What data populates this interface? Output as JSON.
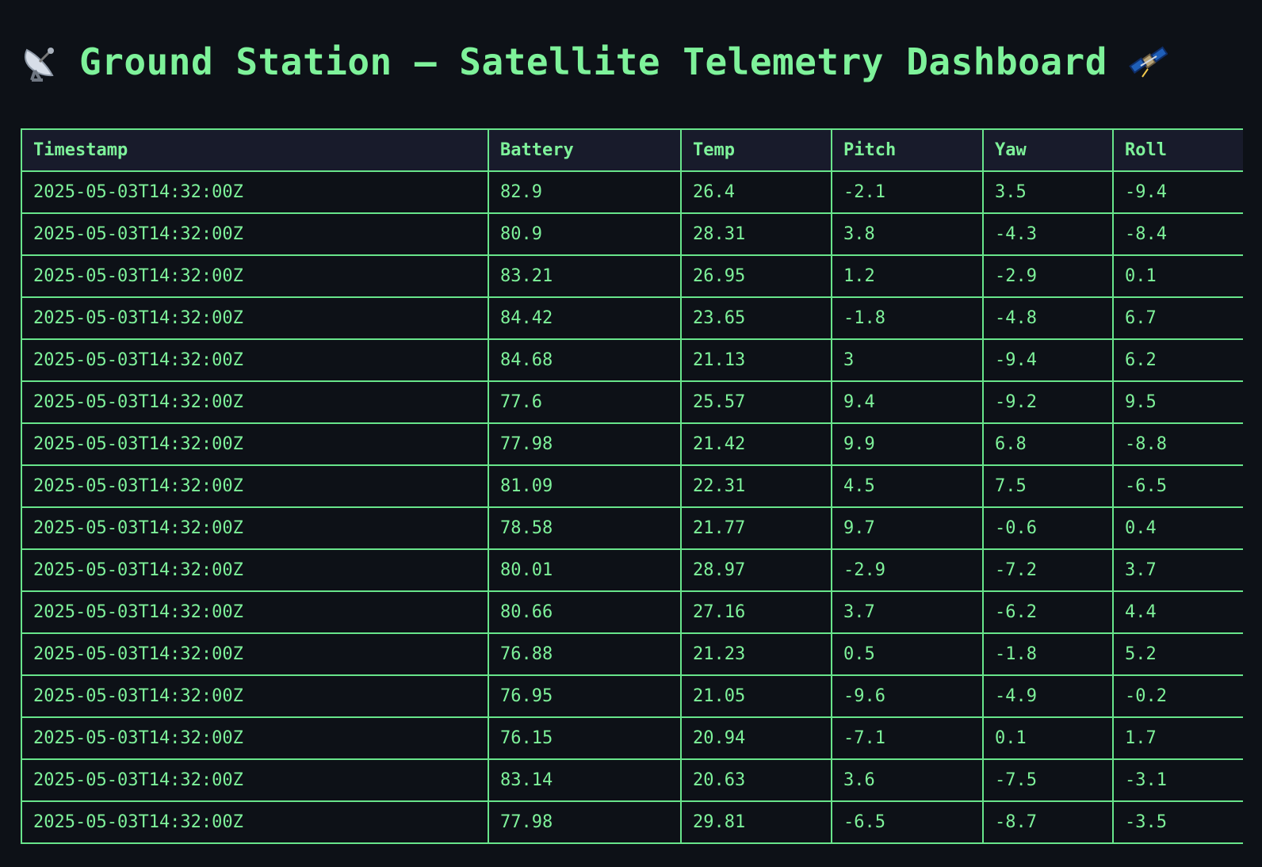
{
  "header": {
    "title": "Ground Station – Satellite Telemetry Dashboard",
    "left_icon": "satellite-dish-icon",
    "right_icon": "satellite-icon"
  },
  "table": {
    "columns": [
      "Timestamp",
      "Battery",
      "Temp",
      "Pitch",
      "Yaw",
      "Roll"
    ],
    "rows": [
      [
        "2025-05-03T14:32:00Z",
        "82.9",
        "26.4",
        "-2.1",
        "3.5",
        "-9.4"
      ],
      [
        "2025-05-03T14:32:00Z",
        "80.9",
        "28.31",
        "3.8",
        "-4.3",
        "-8.4"
      ],
      [
        "2025-05-03T14:32:00Z",
        "83.21",
        "26.95",
        "1.2",
        "-2.9",
        "0.1"
      ],
      [
        "2025-05-03T14:32:00Z",
        "84.42",
        "23.65",
        "-1.8",
        "-4.8",
        "6.7"
      ],
      [
        "2025-05-03T14:32:00Z",
        "84.68",
        "21.13",
        "3",
        "-9.4",
        "6.2"
      ],
      [
        "2025-05-03T14:32:00Z",
        "77.6",
        "25.57",
        "9.4",
        "-9.2",
        "9.5"
      ],
      [
        "2025-05-03T14:32:00Z",
        "77.98",
        "21.42",
        "9.9",
        "6.8",
        "-8.8"
      ],
      [
        "2025-05-03T14:32:00Z",
        "81.09",
        "22.31",
        "4.5",
        "7.5",
        "-6.5"
      ],
      [
        "2025-05-03T14:32:00Z",
        "78.58",
        "21.77",
        "9.7",
        "-0.6",
        "0.4"
      ],
      [
        "2025-05-03T14:32:00Z",
        "80.01",
        "28.97",
        "-2.9",
        "-7.2",
        "3.7"
      ],
      [
        "2025-05-03T14:32:00Z",
        "80.66",
        "27.16",
        "3.7",
        "-6.2",
        "4.4"
      ],
      [
        "2025-05-03T14:32:00Z",
        "76.88",
        "21.23",
        "0.5",
        "-1.8",
        "5.2"
      ],
      [
        "2025-05-03T14:32:00Z",
        "76.95",
        "21.05",
        "-9.6",
        "-4.9",
        "-0.2"
      ],
      [
        "2025-05-03T14:32:00Z",
        "76.15",
        "20.94",
        "-7.1",
        "0.1",
        "1.7"
      ],
      [
        "2025-05-03T14:32:00Z",
        "83.14",
        "20.63",
        "3.6",
        "-7.5",
        "-3.1"
      ],
      [
        "2025-05-03T14:32:00Z",
        "77.98",
        "29.81",
        "-6.5",
        "-8.7",
        "-3.5"
      ]
    ]
  }
}
